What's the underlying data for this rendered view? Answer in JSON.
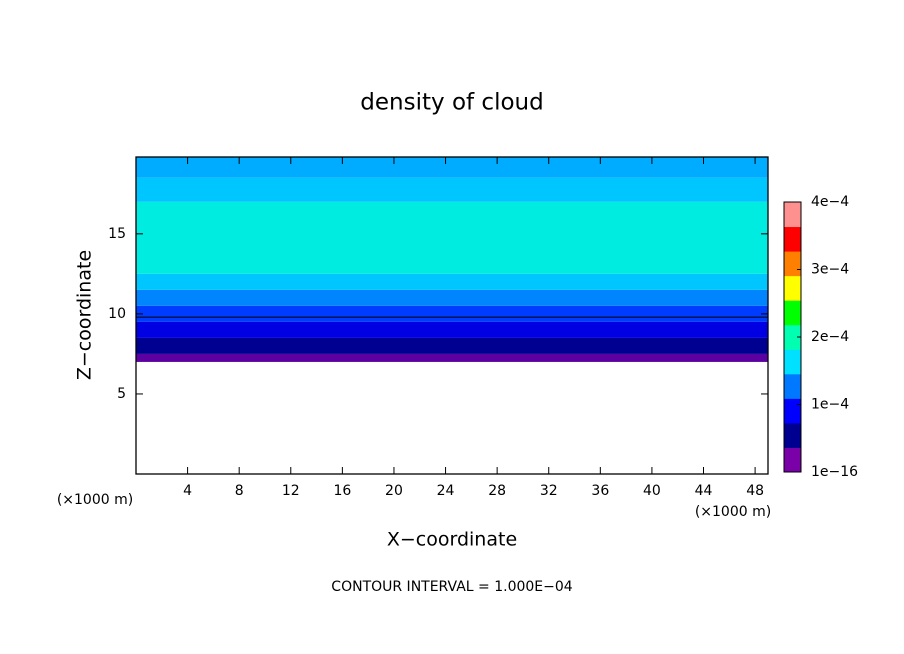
{
  "chart_data": {
    "type": "contour",
    "title": "density of cloud",
    "xlabel": "X−coordinate",
    "ylabel": "Z−coordinate",
    "unit_label": "(×1000 m)",
    "annotation": "CONTOUR INTERVAL = 1.000E−04",
    "xlim": [
      0,
      49
    ],
    "xticks": [
      4,
      8,
      12,
      16,
      20,
      24,
      28,
      32,
      36,
      40,
      44,
      48
    ],
    "ylim": [
      0,
      19.8
    ],
    "yticks": [
      5,
      10,
      15
    ],
    "z": [
      7,
      7.5,
      8.5,
      9.5,
      10.5,
      11.5,
      12.5,
      17,
      18.5,
      19.8
    ],
    "values": [
      1e-05,
      4e-05,
      7e-05,
      0.0001,
      0.000125,
      0.00015,
      0.000175,
      0.00015,
      0.00014
    ],
    "contour": {
      "value": 0.0001,
      "z": 9.8,
      "color": "#000000"
    },
    "colorbar": {
      "lim": [
        0,
        0.0004
      ],
      "ticks": [
        {
          "value": 1e-16,
          "label": "1e−16"
        },
        {
          "value": 0.0001,
          "label": "1e−4"
        },
        {
          "value": 0.0002,
          "label": "2e−4"
        },
        {
          "value": 0.0003,
          "label": "3e−4"
        },
        {
          "value": 0.0004,
          "label": "4e−4"
        }
      ],
      "colors": [
        "#7a00a8",
        "#000090",
        "#0000ff",
        "#0078ff",
        "#00e0ff",
        "#00ffb0",
        "#00ff00",
        "#ffff00",
        "#ff8000",
        "#ff0000",
        "#ff9090"
      ]
    }
  }
}
